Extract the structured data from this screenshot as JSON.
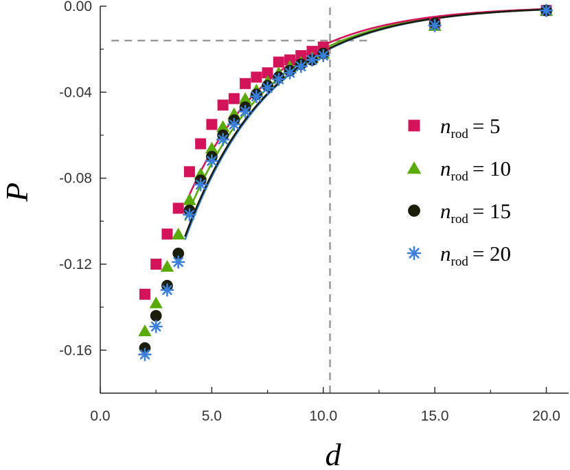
{
  "chart_data": {
    "type": "scatter",
    "title": "",
    "xlabel": "d",
    "ylabel": "P",
    "xlim": [
      0,
      21
    ],
    "ylim": [
      -0.18,
      0.0
    ],
    "xticks": [
      0,
      5,
      10,
      15,
      20
    ],
    "xtick_labels": [
      "0.0",
      "5.0",
      "10.0",
      "15.0",
      "20.0"
    ],
    "yticks": [
      0,
      -0.04,
      -0.08,
      -0.12,
      -0.16
    ],
    "ytick_labels": [
      "0.00",
      "-0.04",
      "-0.08",
      "-0.12",
      "-0.16"
    ],
    "grid": false,
    "legend_position": "right",
    "reference_lines": [
      {
        "orientation": "vertical",
        "x": 10.3,
        "y_from": -0.18,
        "y_to": 0.0,
        "style": "dashed",
        "color": "#999999"
      },
      {
        "orientation": "horizontal",
        "y": -0.016,
        "x_from": 0.5,
        "x_to": 12.2,
        "style": "dashed",
        "color": "#999999"
      }
    ],
    "series": [
      {
        "name": "n_rod = 5",
        "legend_var": "n",
        "legend_sub": "rod",
        "legend_value": "= 5",
        "marker": "square",
        "color": "#d4145a",
        "x": [
          2,
          2.5,
          3,
          3.5,
          4,
          4.5,
          5,
          5.5,
          6,
          6.5,
          7,
          7.5,
          8,
          8.5,
          9,
          9.5,
          10,
          15,
          20
        ],
        "y": [
          -0.134,
          -0.12,
          -0.106,
          -0.094,
          -0.077,
          -0.064,
          -0.055,
          -0.046,
          -0.043,
          -0.036,
          -0.033,
          -0.031,
          -0.026,
          -0.025,
          -0.023,
          -0.021,
          -0.019,
          -0.008,
          -0.002
        ],
        "fit": {
          "a": -0.25,
          "b": 0.262,
          "x_from": 3.8,
          "x_to": 20
        }
      },
      {
        "name": "n_rod = 10",
        "legend_var": "n",
        "legend_sub": "rod",
        "legend_value": "= 10",
        "marker": "triangle",
        "color": "#5aaa0a",
        "x": [
          2,
          2.5,
          3,
          3.5,
          4,
          4.5,
          5,
          5.5,
          6,
          6.5,
          7,
          7.5,
          8,
          8.5,
          9,
          9.5,
          10,
          15,
          20
        ],
        "y": [
          -0.151,
          -0.138,
          -0.121,
          -0.106,
          -0.09,
          -0.078,
          -0.066,
          -0.056,
          -0.05,
          -0.043,
          -0.039,
          -0.035,
          -0.031,
          -0.028,
          -0.026,
          -0.024,
          -0.022,
          -0.009,
          -0.002
        ],
        "fit": {
          "a": -0.268,
          "b": 0.26,
          "x_from": 3.8,
          "x_to": 20
        }
      },
      {
        "name": "n_rod = 15",
        "legend_var": "n",
        "legend_sub": "rod",
        "legend_value": "= 15",
        "marker": "circle",
        "color": "#1c1e0c",
        "x": [
          2,
          2.5,
          3,
          3.5,
          4,
          4.5,
          5,
          5.5,
          6,
          6.5,
          7,
          7.5,
          8,
          8.5,
          9,
          9.5,
          10,
          15,
          20
        ],
        "y": [
          -0.159,
          -0.144,
          -0.13,
          -0.115,
          -0.095,
          -0.081,
          -0.07,
          -0.06,
          -0.053,
          -0.047,
          -0.041,
          -0.037,
          -0.033,
          -0.03,
          -0.027,
          -0.025,
          -0.022,
          -0.008,
          -0.002
        ],
        "fit": {
          "a": -0.29,
          "b": 0.262,
          "x_from": 3.8,
          "x_to": 20
        }
      },
      {
        "name": "n_rod = 20",
        "legend_var": "n",
        "legend_sub": "rod",
        "legend_value": "= 20",
        "marker": "asterisk",
        "color": "#3a7fd8",
        "x": [
          2,
          2.5,
          3,
          3.5,
          4,
          4.5,
          5,
          5.5,
          6,
          6.5,
          7,
          7.5,
          8,
          8.5,
          9,
          9.5,
          10,
          15,
          20
        ],
        "y": [
          -0.162,
          -0.149,
          -0.132,
          -0.119,
          -0.097,
          -0.083,
          -0.072,
          -0.062,
          -0.055,
          -0.049,
          -0.042,
          -0.038,
          -0.034,
          -0.031,
          -0.028,
          -0.025,
          -0.023,
          -0.009,
          -0.002
        ],
        "fit": {
          "a": -0.294,
          "b": 0.262,
          "x_from": 3.8,
          "x_to": 20
        }
      }
    ]
  }
}
